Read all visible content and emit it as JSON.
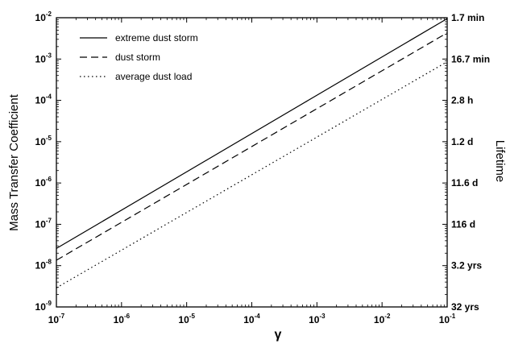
{
  "chart_data": {
    "type": "line",
    "title": "",
    "xlabel": "γ",
    "ylabel": "Mass Transfer Coefficient",
    "ylabel_right": "Lifetime",
    "xscale": "log",
    "yscale": "log",
    "xlim": [
      1e-07,
      0.1
    ],
    "ylim": [
      1e-09,
      0.01
    ],
    "x_ticks": [
      {
        "value": 1e-07,
        "base": "10",
        "exp": "-7"
      },
      {
        "value": 1e-06,
        "base": "10",
        "exp": "-6"
      },
      {
        "value": 1e-05,
        "base": "10",
        "exp": "-5"
      },
      {
        "value": 0.0001,
        "base": "10",
        "exp": "-4"
      },
      {
        "value": 0.001,
        "base": "10",
        "exp": "-3"
      },
      {
        "value": 0.01,
        "base": "10",
        "exp": "-2"
      },
      {
        "value": 0.1,
        "base": "10",
        "exp": "-1"
      }
    ],
    "y_ticks": [
      {
        "value": 1e-09,
        "base": "10",
        "exp": "-9"
      },
      {
        "value": 1e-08,
        "base": "10",
        "exp": "-8"
      },
      {
        "value": 1e-07,
        "base": "10",
        "exp": "-7"
      },
      {
        "value": 1e-06,
        "base": "10",
        "exp": "-6"
      },
      {
        "value": 1e-05,
        "base": "10",
        "exp": "-5"
      },
      {
        "value": 0.0001,
        "base": "10",
        "exp": "-4"
      },
      {
        "value": 0.001,
        "base": "10",
        "exp": "-3"
      },
      {
        "value": 0.01,
        "base": "10",
        "exp": "-2"
      }
    ],
    "y_right_ticks": [
      {
        "value": 0.01,
        "label": "1.7 min"
      },
      {
        "value": 0.001,
        "label": "16.7 min"
      },
      {
        "value": 0.0001,
        "label": "2.8 h"
      },
      {
        "value": 1e-05,
        "label": "1.2 d"
      },
      {
        "value": 1e-06,
        "label": "11.6 d"
      },
      {
        "value": 1e-07,
        "label": "116 d"
      },
      {
        "value": 1e-08,
        "label": "3.2 yrs"
      },
      {
        "value": 1e-09,
        "label": "32 yrs"
      }
    ],
    "series": [
      {
        "name": "extreme dust storm",
        "dash": "solid",
        "x": [
          1e-07,
          0.1
        ],
        "y": [
          2.6e-08,
          0.0095
        ]
      },
      {
        "name": "dust storm",
        "dash": "dashed",
        "x": [
          1e-07,
          0.1
        ],
        "y": [
          1.35e-08,
          0.0043
        ]
      },
      {
        "name": "average dust load",
        "dash": "dotted",
        "x": [
          1e-07,
          0.1
        ],
        "y": [
          2.9e-09,
          0.00086
        ]
      }
    ],
    "legend_position": "top-left",
    "grid": false
  }
}
